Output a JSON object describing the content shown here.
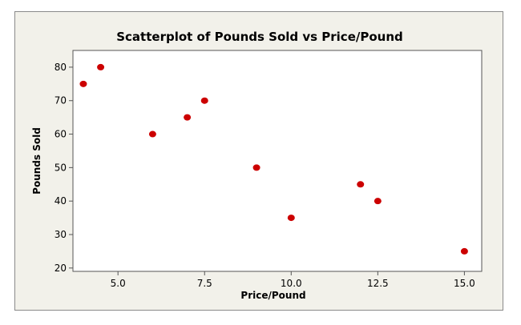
{
  "chart_data": {
    "type": "scatter",
    "title": "Scatterplot of Pounds Sold vs Price/Pound",
    "xlabel": "Price/Pound",
    "ylabel": "Pounds Sold",
    "xlim": [
      3.7,
      15.5
    ],
    "ylim": [
      19,
      85
    ],
    "x_ticks": [
      5.0,
      7.5,
      10.0,
      12.5,
      15.0
    ],
    "x_tick_labels": [
      "5.0",
      "7.5",
      "10.0",
      "12.5",
      "15.0"
    ],
    "y_ticks": [
      20,
      30,
      40,
      50,
      60,
      70,
      80
    ],
    "y_tick_labels": [
      "20",
      "30",
      "40",
      "50",
      "60",
      "70",
      "80"
    ],
    "grid": false,
    "marker_color": "#cc0000",
    "points": [
      {
        "x": 4.0,
        "y": 75
      },
      {
        "x": 4.5,
        "y": 80
      },
      {
        "x": 6.0,
        "y": 60
      },
      {
        "x": 7.0,
        "y": 65
      },
      {
        "x": 7.5,
        "y": 70
      },
      {
        "x": 9.0,
        "y": 50
      },
      {
        "x": 10.0,
        "y": 35
      },
      {
        "x": 12.0,
        "y": 45
      },
      {
        "x": 12.5,
        "y": 40
      },
      {
        "x": 15.0,
        "y": 25
      }
    ]
  }
}
